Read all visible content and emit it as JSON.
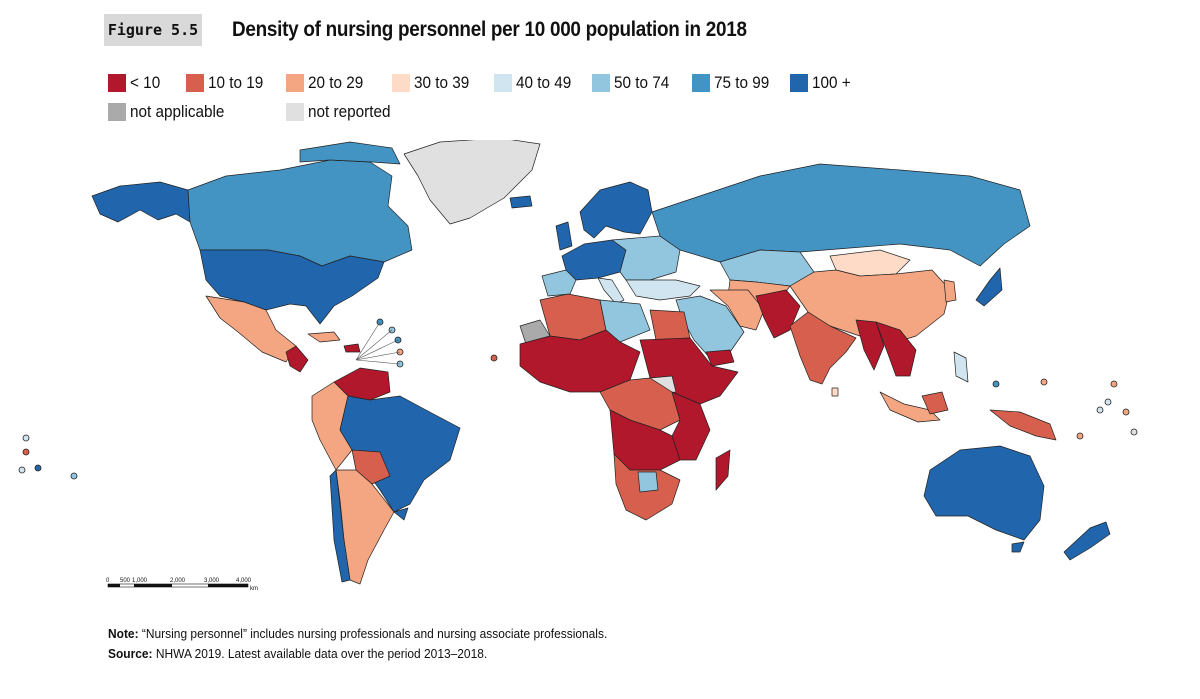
{
  "figure": {
    "label": "Figure 5.5",
    "title": "Density of nursing personnel per 10 000 population in 2018"
  },
  "legend": {
    "items": [
      {
        "label": "< 10",
        "color": "#b2182b"
      },
      {
        "label": "10 to 19",
        "color": "#d6604d"
      },
      {
        "label": "20 to 29",
        "color": "#f4a582"
      },
      {
        "label": "30 to 39",
        "color": "#fddbc7"
      },
      {
        "label": "40 to 49",
        "color": "#d1e5f0"
      },
      {
        "label": "50 to 74",
        "color": "#92c5de"
      },
      {
        "label": "75 to 99",
        "color": "#4393c3"
      },
      {
        "label": "100 +",
        "color": "#2166ac"
      },
      {
        "label": "not applicable",
        "color": "#aaaaaa"
      },
      {
        "label": "not reported",
        "color": "#e0e0e0"
      }
    ]
  },
  "scale": {
    "ticks": [
      "0",
      "500",
      "1,000",
      "2,000",
      "3,000",
      "4,000"
    ],
    "unit": "km"
  },
  "note": {
    "note_label": "Note:",
    "note_text": "“Nursing personnel” includes nursing professionals and nursing associate professionals.",
    "source_label": "Source:",
    "source_text": "NHWA 2019. Latest available data over the period 2013–2018."
  }
}
